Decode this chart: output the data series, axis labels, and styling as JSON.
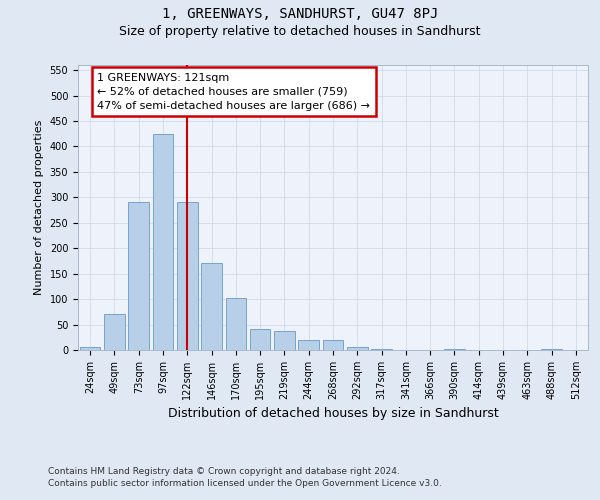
{
  "title": "1, GREENWAYS, SANDHURST, GU47 8PJ",
  "subtitle": "Size of property relative to detached houses in Sandhurst",
  "xlabel": "Distribution of detached houses by size in Sandhurst",
  "ylabel": "Number of detached properties",
  "bar_labels": [
    "24sqm",
    "49sqm",
    "73sqm",
    "97sqm",
    "122sqm",
    "146sqm",
    "170sqm",
    "195sqm",
    "219sqm",
    "244sqm",
    "268sqm",
    "292sqm",
    "317sqm",
    "341sqm",
    "366sqm",
    "390sqm",
    "414sqm",
    "439sqm",
    "463sqm",
    "488sqm",
    "512sqm"
  ],
  "bar_values": [
    5,
    70,
    290,
    425,
    290,
    170,
    103,
    42,
    38,
    20,
    20,
    5,
    2,
    0,
    0,
    2,
    0,
    0,
    0,
    2,
    0
  ],
  "bar_color": "#b8cfe8",
  "bar_edge_color": "#6699cc",
  "vline_x_idx": 4,
  "vline_color": "#cc0000",
  "annotation_line1": "1 GREENWAYS: 121sqm",
  "annotation_line2": "← 52% of detached houses are smaller (759)",
  "annotation_line3": "47% of semi-detached houses are larger (686) →",
  "annotation_box_facecolor": "#ffffff",
  "annotation_box_edgecolor": "#cc0000",
  "ylim": [
    0,
    560
  ],
  "yticks": [
    0,
    50,
    100,
    150,
    200,
    250,
    300,
    350,
    400,
    450,
    500,
    550
  ],
  "bg_color": "#e0e8f4",
  "plot_bg_color": "#eef2fa",
  "footer_line1": "Contains HM Land Registry data © Crown copyright and database right 2024.",
  "footer_line2": "Contains public sector information licensed under the Open Government Licence v3.0.",
  "title_fontsize": 10,
  "subtitle_fontsize": 9,
  "ylabel_fontsize": 8,
  "xlabel_fontsize": 9,
  "tick_fontsize": 7,
  "annotation_fontsize": 8,
  "footer_fontsize": 6.5,
  "grid_color": "#ccd6e8",
  "spine_color": "#aab8cc"
}
